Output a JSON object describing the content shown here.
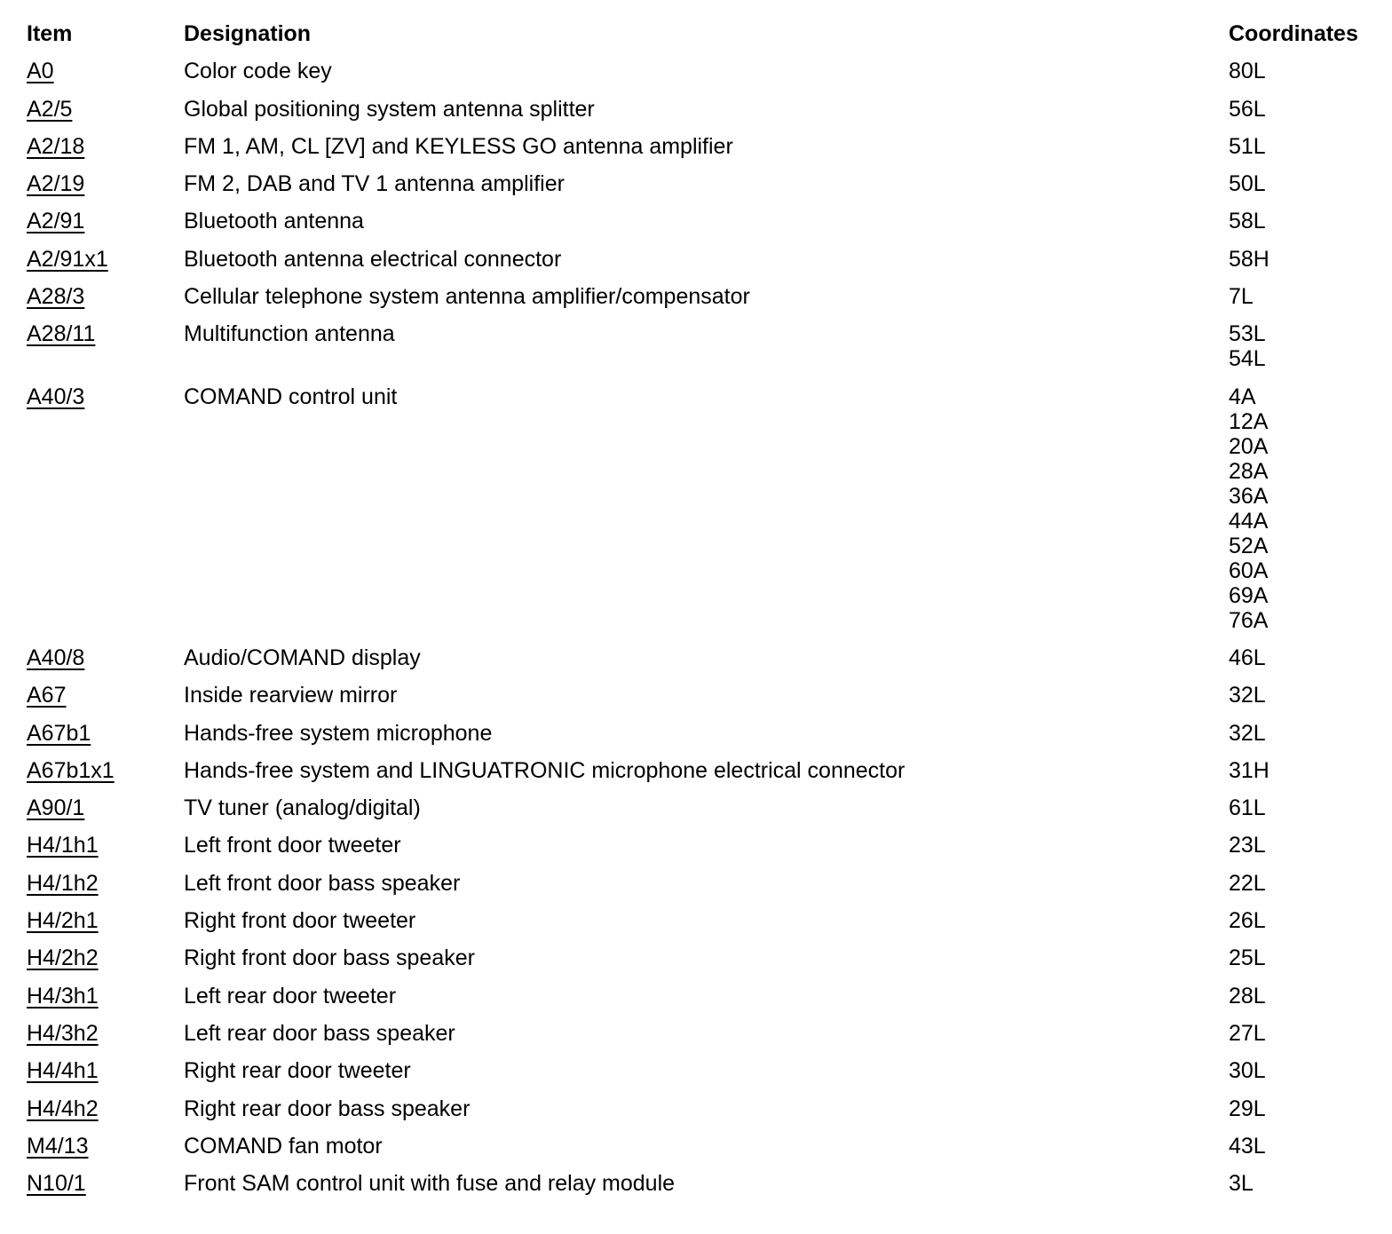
{
  "colors": {
    "background": "#ffffff",
    "text": "#000000"
  },
  "table": {
    "headers": {
      "item": "Item",
      "designation": "Designation",
      "coordinates": "Coordinates"
    },
    "rows": [
      {
        "item": "A0",
        "designation": "Color code key",
        "coordinates": [
          "80L"
        ]
      },
      {
        "item": "A2/5",
        "designation": "Global positioning system antenna splitter",
        "coordinates": [
          "56L"
        ]
      },
      {
        "item": "A2/18",
        "designation": "FM 1, AM, CL [ZV] and KEYLESS GO antenna amplifier",
        "coordinates": [
          "51L"
        ]
      },
      {
        "item": "A2/19",
        "designation": "FM 2, DAB and TV 1 antenna amplifier",
        "coordinates": [
          "50L"
        ]
      },
      {
        "item": "A2/91",
        "designation": "Bluetooth antenna",
        "coordinates": [
          "58L"
        ]
      },
      {
        "item": "A2/91x1",
        "designation": "Bluetooth antenna electrical connector",
        "coordinates": [
          "58H"
        ]
      },
      {
        "item": "A28/3",
        "designation": "Cellular telephone system antenna amplifier/compensator",
        "coordinates": [
          "7L"
        ]
      },
      {
        "item": "A28/11",
        "designation": "Multifunction antenna",
        "coordinates": [
          "53L",
          "54L"
        ]
      },
      {
        "item": "A40/3",
        "designation": "COMAND control unit",
        "coordinates": [
          "4A",
          "12A",
          "20A",
          "28A",
          "36A",
          "44A",
          "52A",
          "60A",
          "69A",
          "76A"
        ]
      },
      {
        "item": "A40/8",
        "designation": "Audio/COMAND display",
        "coordinates": [
          "46L"
        ]
      },
      {
        "item": "A67",
        "designation": "Inside rearview mirror",
        "coordinates": [
          "32L"
        ]
      },
      {
        "item": "A67b1",
        "designation": "Hands-free system microphone",
        "coordinates": [
          "32L"
        ]
      },
      {
        "item": "A67b1x1",
        "designation": "Hands-free system and LINGUATRONIC microphone electrical connector",
        "coordinates": [
          "31H"
        ]
      },
      {
        "item": "A90/1",
        "designation": "TV tuner (analog/digital)",
        "coordinates": [
          "61L"
        ]
      },
      {
        "item": "H4/1h1",
        "designation": "Left front door tweeter",
        "coordinates": [
          "23L"
        ]
      },
      {
        "item": "H4/1h2",
        "designation": "Left front door bass speaker",
        "coordinates": [
          "22L"
        ]
      },
      {
        "item": "H4/2h1",
        "designation": "Right front door tweeter",
        "coordinates": [
          "26L"
        ]
      },
      {
        "item": "H4/2h2",
        "designation": "Right front door bass speaker",
        "coordinates": [
          "25L"
        ]
      },
      {
        "item": "H4/3h1",
        "designation": "Left rear door tweeter",
        "coordinates": [
          "28L"
        ]
      },
      {
        "item": "H4/3h2",
        "designation": "Left rear door bass speaker",
        "coordinates": [
          "27L"
        ]
      },
      {
        "item": "H4/4h1",
        "designation": "Right rear door tweeter",
        "coordinates": [
          "30L"
        ]
      },
      {
        "item": "H4/4h2",
        "designation": "Right rear door bass speaker",
        "coordinates": [
          "29L"
        ]
      },
      {
        "item": "M4/13",
        "designation": "COMAND fan motor",
        "coordinates": [
          "43L"
        ]
      },
      {
        "item": "N10/1",
        "designation": "Front SAM control unit with fuse and relay module",
        "coordinates": [
          "3L"
        ]
      }
    ]
  }
}
